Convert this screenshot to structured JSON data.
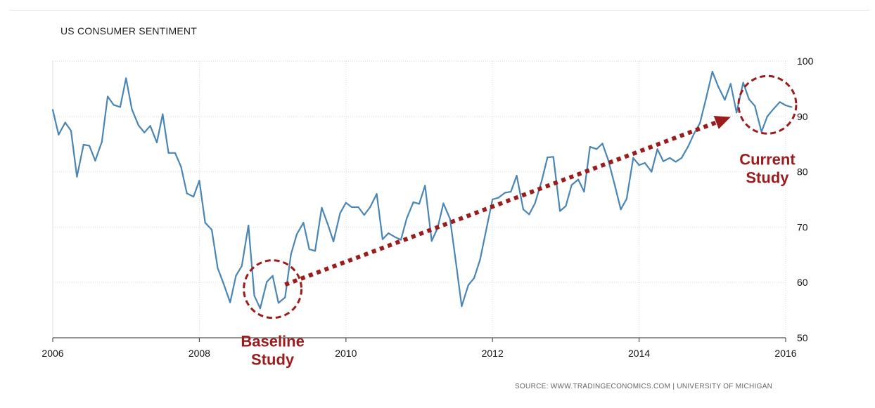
{
  "chart_data": {
    "type": "line",
    "title": "US CONSUMER SENTIMENT",
    "source": "SOURCE: WWW.TRADINGECONOMICS.COM | UNIVERSITY OF MICHIGAN",
    "xlabel": "",
    "ylabel": "",
    "xlim": [
      2006,
      2016
    ],
    "ylim": [
      50,
      100
    ],
    "x_ticks": [
      2006,
      2008,
      2010,
      2012,
      2014,
      2016
    ],
    "y_ticks": [
      50,
      60,
      70,
      80,
      90,
      100
    ],
    "grid": true,
    "y_axis_side": "right",
    "line_color": "#4a86b5",
    "annotation_color": "#9b1c1c",
    "series": [
      {
        "points": [
          [
            2006.0,
            91.2
          ],
          [
            2006.08,
            86.7
          ],
          [
            2006.17,
            88.9
          ],
          [
            2006.25,
            87.4
          ],
          [
            2006.33,
            79.1
          ],
          [
            2006.42,
            84.9
          ],
          [
            2006.5,
            84.7
          ],
          [
            2006.58,
            82.0
          ],
          [
            2006.67,
            85.4
          ],
          [
            2006.75,
            93.6
          ],
          [
            2006.83,
            92.1
          ],
          [
            2006.92,
            91.7
          ],
          [
            2007.0,
            96.9
          ],
          [
            2007.08,
            91.3
          ],
          [
            2007.17,
            88.4
          ],
          [
            2007.25,
            87.1
          ],
          [
            2007.33,
            88.3
          ],
          [
            2007.42,
            85.3
          ],
          [
            2007.5,
            90.4
          ],
          [
            2007.58,
            83.4
          ],
          [
            2007.67,
            83.4
          ],
          [
            2007.75,
            80.9
          ],
          [
            2007.83,
            76.1
          ],
          [
            2007.92,
            75.5
          ],
          [
            2008.0,
            78.4
          ],
          [
            2008.08,
            70.8
          ],
          [
            2008.17,
            69.5
          ],
          [
            2008.25,
            62.6
          ],
          [
            2008.33,
            59.8
          ],
          [
            2008.42,
            56.4
          ],
          [
            2008.5,
            61.2
          ],
          [
            2008.58,
            63.0
          ],
          [
            2008.67,
            70.3
          ],
          [
            2008.75,
            57.6
          ],
          [
            2008.83,
            55.3
          ],
          [
            2008.92,
            60.1
          ],
          [
            2009.0,
            61.2
          ],
          [
            2009.08,
            56.3
          ],
          [
            2009.17,
            57.3
          ],
          [
            2009.25,
            65.1
          ],
          [
            2009.33,
            68.7
          ],
          [
            2009.42,
            70.8
          ],
          [
            2009.5,
            66.0
          ],
          [
            2009.58,
            65.7
          ],
          [
            2009.67,
            73.5
          ],
          [
            2009.75,
            70.6
          ],
          [
            2009.83,
            67.4
          ],
          [
            2009.92,
            72.5
          ],
          [
            2010.0,
            74.4
          ],
          [
            2010.08,
            73.6
          ],
          [
            2010.17,
            73.6
          ],
          [
            2010.25,
            72.2
          ],
          [
            2010.33,
            73.6
          ],
          [
            2010.42,
            76.0
          ],
          [
            2010.5,
            67.8
          ],
          [
            2010.58,
            68.9
          ],
          [
            2010.67,
            68.2
          ],
          [
            2010.75,
            67.7
          ],
          [
            2010.83,
            71.6
          ],
          [
            2010.92,
            74.5
          ],
          [
            2011.0,
            74.2
          ],
          [
            2011.08,
            77.5
          ],
          [
            2011.17,
            67.5
          ],
          [
            2011.25,
            69.8
          ],
          [
            2011.33,
            74.3
          ],
          [
            2011.42,
            71.5
          ],
          [
            2011.5,
            63.7
          ],
          [
            2011.58,
            55.7
          ],
          [
            2011.67,
            59.5
          ],
          [
            2011.75,
            60.8
          ],
          [
            2011.83,
            64.1
          ],
          [
            2011.92,
            69.9
          ],
          [
            2012.0,
            75.0
          ],
          [
            2012.08,
            75.3
          ],
          [
            2012.17,
            76.2
          ],
          [
            2012.25,
            76.4
          ],
          [
            2012.33,
            79.3
          ],
          [
            2012.42,
            73.2
          ],
          [
            2012.5,
            72.3
          ],
          [
            2012.58,
            74.3
          ],
          [
            2012.67,
            78.3
          ],
          [
            2012.75,
            82.6
          ],
          [
            2012.83,
            82.7
          ],
          [
            2012.92,
            72.9
          ],
          [
            2013.0,
            73.8
          ],
          [
            2013.08,
            77.6
          ],
          [
            2013.17,
            78.6
          ],
          [
            2013.25,
            76.4
          ],
          [
            2013.33,
            84.5
          ],
          [
            2013.42,
            84.1
          ],
          [
            2013.5,
            85.1
          ],
          [
            2013.58,
            82.1
          ],
          [
            2013.67,
            77.5
          ],
          [
            2013.75,
            73.2
          ],
          [
            2013.83,
            75.1
          ],
          [
            2013.92,
            82.5
          ],
          [
            2014.0,
            81.2
          ],
          [
            2014.08,
            81.6
          ],
          [
            2014.17,
            80.0
          ],
          [
            2014.25,
            84.1
          ],
          [
            2014.33,
            81.9
          ],
          [
            2014.42,
            82.5
          ],
          [
            2014.5,
            81.8
          ],
          [
            2014.58,
            82.5
          ],
          [
            2014.67,
            84.6
          ],
          [
            2014.75,
            86.9
          ],
          [
            2014.83,
            88.8
          ],
          [
            2014.92,
            93.6
          ],
          [
            2015.0,
            98.1
          ],
          [
            2015.08,
            95.4
          ],
          [
            2015.17,
            93.0
          ],
          [
            2015.25,
            95.9
          ],
          [
            2015.33,
            90.7
          ],
          [
            2015.42,
            96.1
          ],
          [
            2015.5,
            93.1
          ],
          [
            2015.58,
            91.9
          ],
          [
            2015.67,
            87.2
          ],
          [
            2015.75,
            90.0
          ],
          [
            2015.83,
            91.3
          ],
          [
            2015.92,
            92.6
          ],
          [
            2016.0,
            92.0
          ],
          [
            2016.08,
            91.7
          ]
        ]
      }
    ],
    "annotations": [
      {
        "label_lines": [
          "Baseline",
          "Study"
        ],
        "x": 2009.0,
        "y": 58.8
      },
      {
        "label_lines": [
          "Current",
          "Study"
        ],
        "x": 2015.75,
        "y": 92.1
      }
    ],
    "trend_arrow": {
      "from": [
        2009.17,
        59.6
      ],
      "to": [
        2015.25,
        89.9
      ]
    }
  }
}
